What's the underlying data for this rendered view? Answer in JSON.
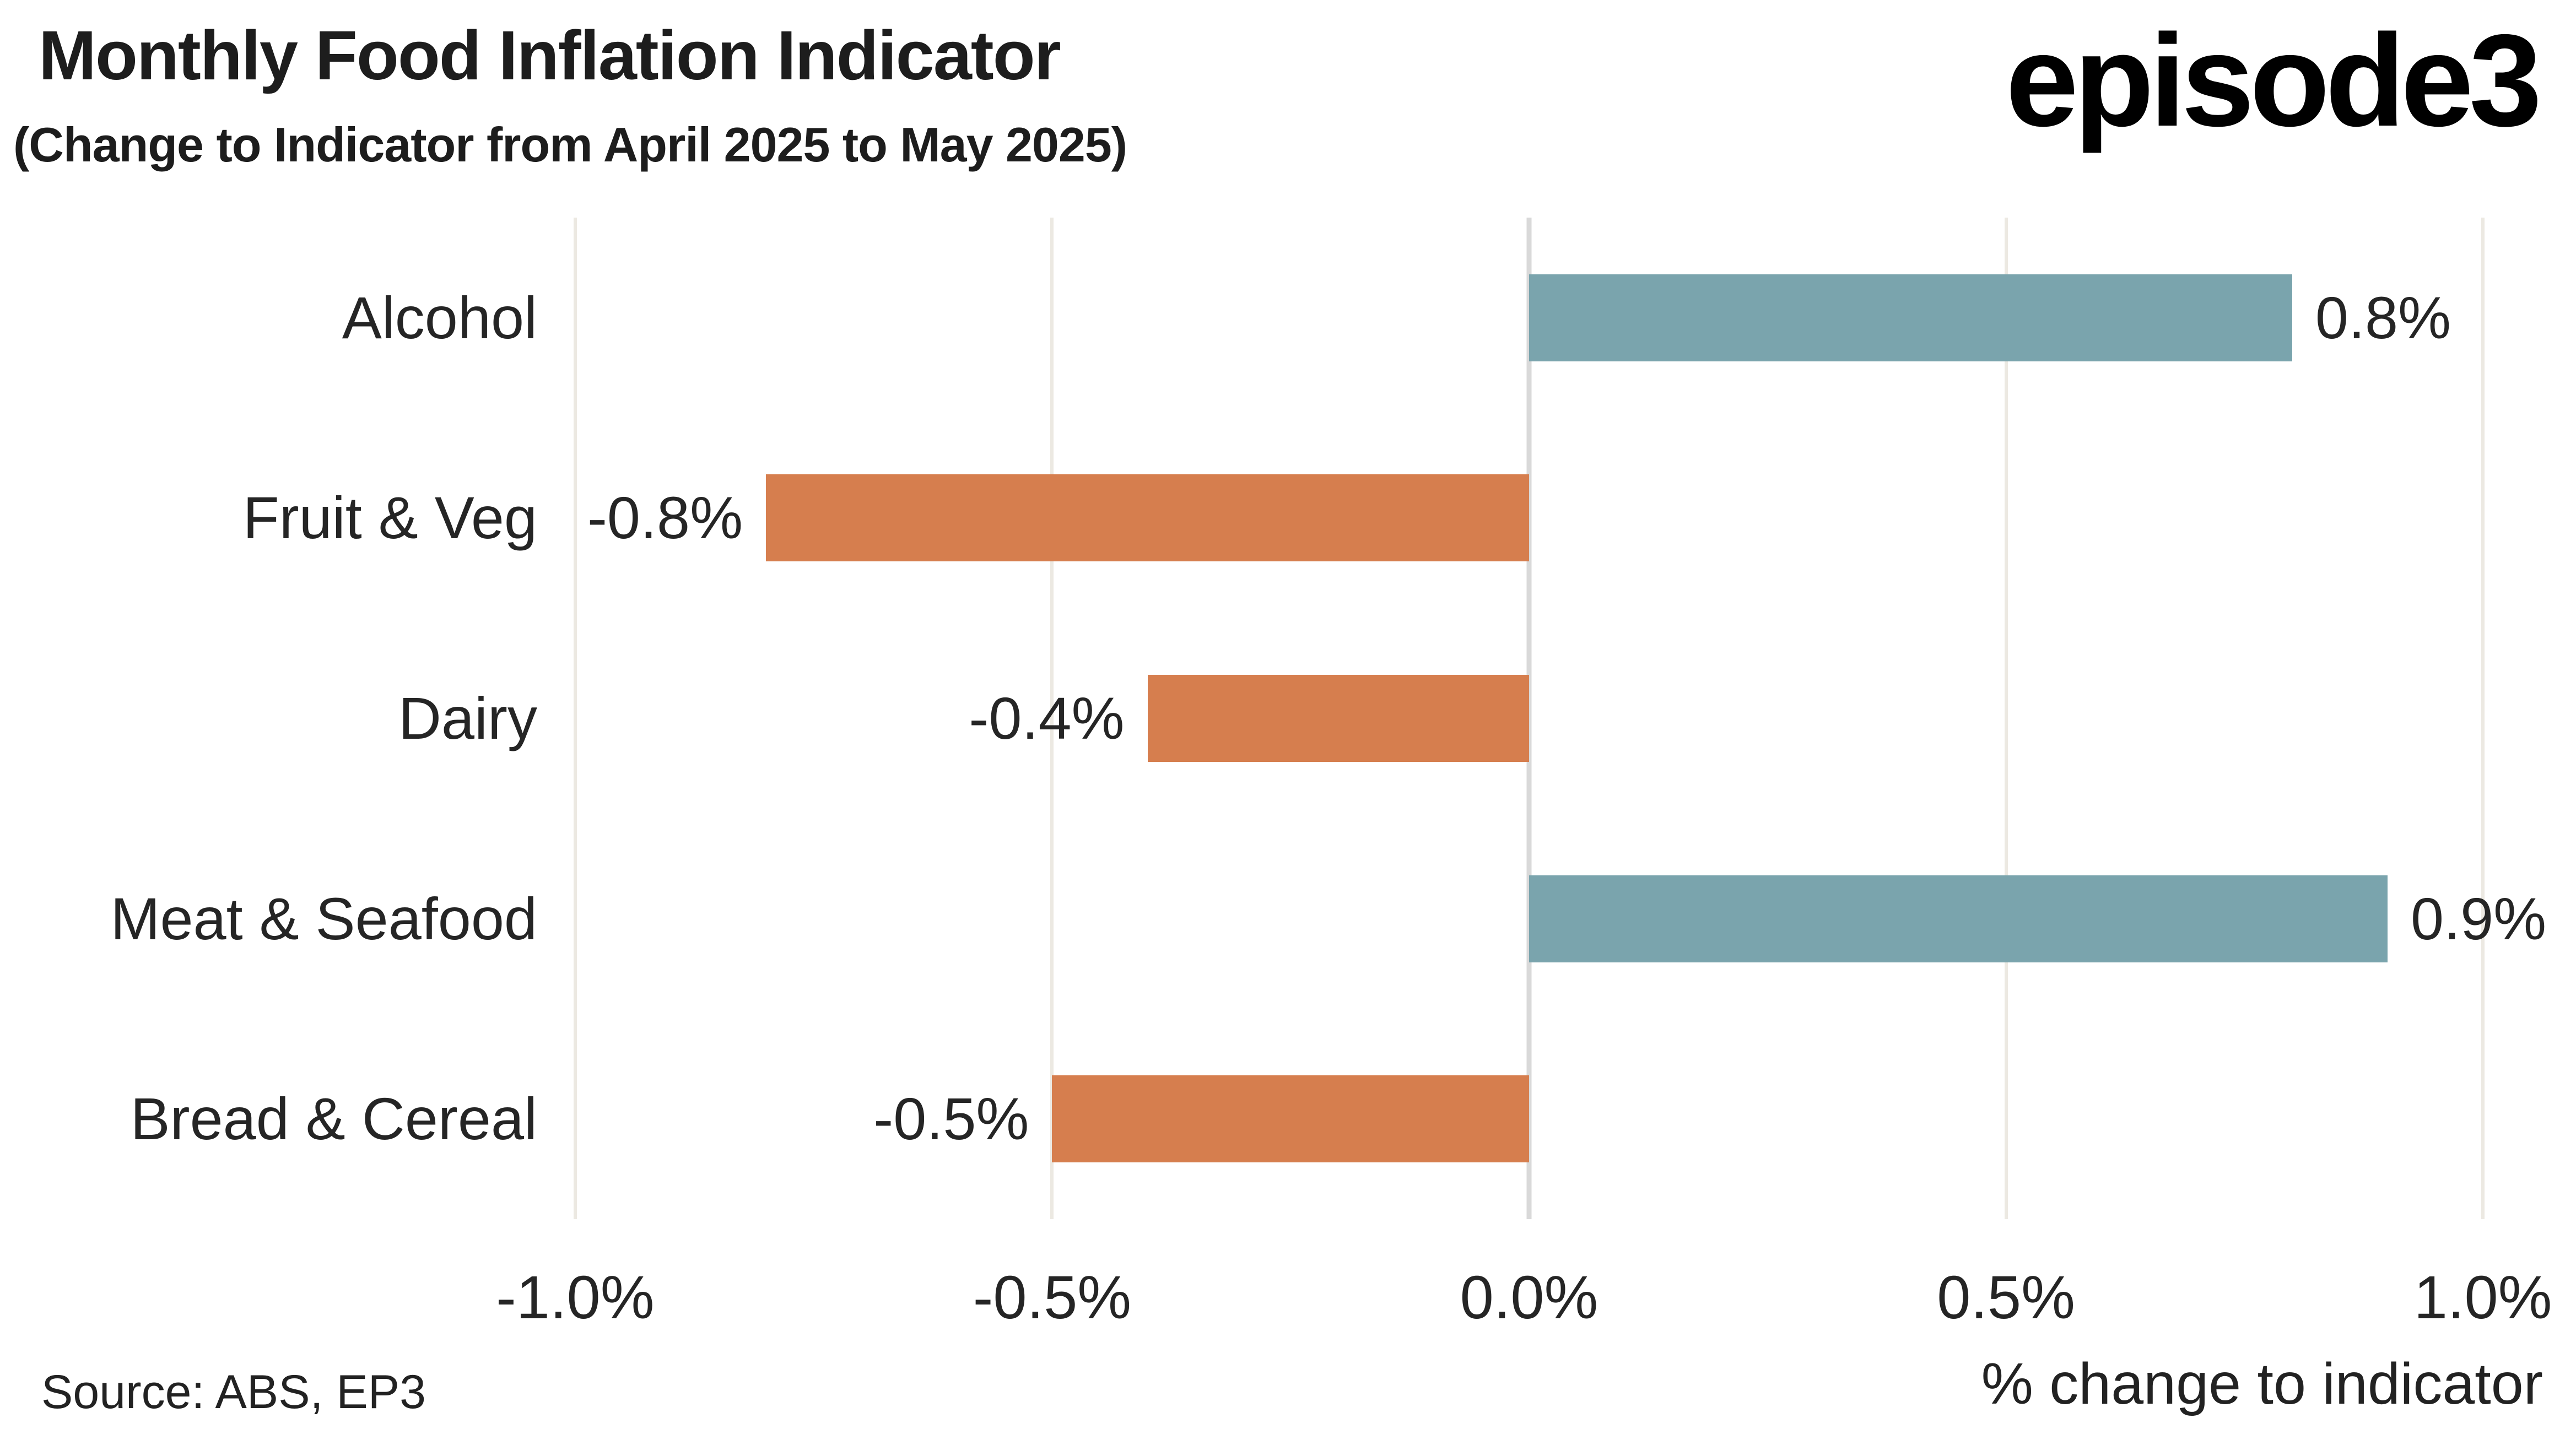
{
  "header": {
    "title": "Monthly Food Inflation Indicator",
    "subtitle": "(Change to Indicator from April 2025 to May 2025)",
    "logo": "episode3"
  },
  "footer": {
    "source": "Source: ABS, EP3",
    "xaxis_label": "% change to indicator"
  },
  "chart_data": {
    "type": "bar",
    "orientation": "horizontal",
    "title": "Monthly Food Inflation Indicator",
    "subtitle": "(Change to Indicator from April 2025 to May 2025)",
    "categories": [
      "Alcohol",
      "Fruit & Veg",
      "Dairy",
      "Meat & Seafood",
      "Bread & Cereal"
    ],
    "values": [
      0.8,
      -0.8,
      -0.4,
      0.9,
      -0.5
    ],
    "value_labels": [
      "0.8%",
      "-0.8%",
      "-0.4%",
      "0.9%",
      "-0.5%"
    ],
    "xlabel": "% change to indicator",
    "xlim": [
      -1.06,
      1.06
    ],
    "xticks": [
      {
        "value": -1.0,
        "label": "-1.0%"
      },
      {
        "value": -0.5,
        "label": "-0.5%"
      },
      {
        "value": 0.0,
        "label": "0.0%"
      },
      {
        "value": 0.5,
        "label": "0.5%"
      },
      {
        "value": 1.0,
        "label": "1.0%"
      }
    ],
    "grid": "vertical-gridlines-on",
    "legend": "none",
    "colors": {
      "positive": "#7aa4ad",
      "negative": "#d67e4e",
      "gridline": "#ece9e2",
      "zeroline": "#d9d9d9",
      "text": "#252525",
      "background": "#ffffff"
    }
  }
}
